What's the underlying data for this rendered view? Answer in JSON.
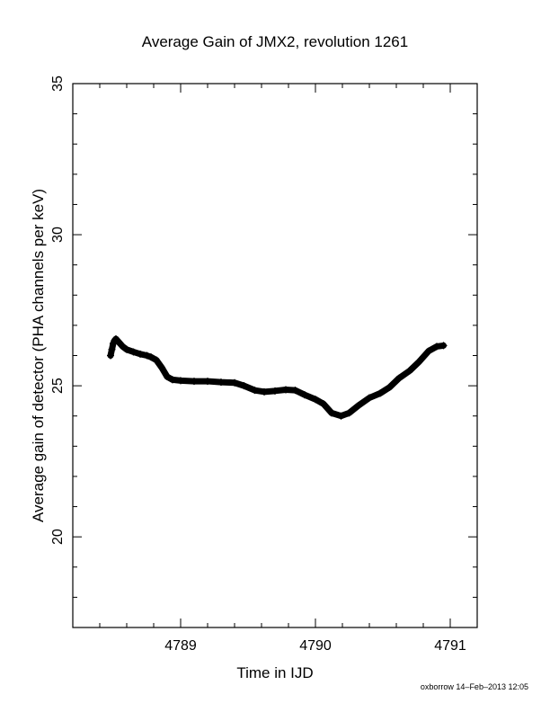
{
  "chart_data": {
    "type": "scatter",
    "title": "Average Gain of JMX2, revolution 1261",
    "xlabel": "Time in IJD",
    "ylabel": "Average gain of detector (PHA channels per keV)",
    "xlim": [
      4788.2,
      4791.2
    ],
    "ylim": [
      17,
      35
    ],
    "x_ticks": [
      4789,
      4790,
      4791
    ],
    "y_ticks": [
      20,
      25,
      30,
      35
    ],
    "x_minor_step": 0.2,
    "y_minor_step": 1,
    "marker": "+",
    "series": [
      {
        "points": [
          [
            4788.48,
            26.0
          ],
          [
            4788.49,
            26.2
          ],
          [
            4788.5,
            26.4
          ],
          [
            4788.51,
            26.5
          ],
          [
            4788.52,
            26.55
          ],
          [
            4788.54,
            26.45
          ],
          [
            4788.57,
            26.3
          ],
          [
            4788.6,
            26.2
          ],
          [
            4788.65,
            26.12
          ],
          [
            4788.7,
            26.05
          ],
          [
            4788.75,
            26.0
          ],
          [
            4788.78,
            25.95
          ],
          [
            4788.82,
            25.85
          ],
          [
            4788.86,
            25.6
          ],
          [
            4788.9,
            25.3
          ],
          [
            4788.94,
            25.2
          ],
          [
            4789.0,
            25.17
          ],
          [
            4789.1,
            25.15
          ],
          [
            4789.2,
            25.15
          ],
          [
            4789.3,
            25.12
          ],
          [
            4789.4,
            25.1
          ],
          [
            4789.47,
            25.0
          ],
          [
            4789.55,
            24.85
          ],
          [
            4789.62,
            24.8
          ],
          [
            4789.7,
            24.83
          ],
          [
            4789.78,
            24.87
          ],
          [
            4789.85,
            24.85
          ],
          [
            4789.92,
            24.7
          ],
          [
            4790.0,
            24.55
          ],
          [
            4790.06,
            24.4
          ],
          [
            4790.12,
            24.1
          ],
          [
            4790.19,
            24.0
          ],
          [
            4790.25,
            24.1
          ],
          [
            4790.32,
            24.35
          ],
          [
            4790.4,
            24.6
          ],
          [
            4790.48,
            24.75
          ],
          [
            4790.55,
            24.95
          ],
          [
            4790.62,
            25.25
          ],
          [
            4790.7,
            25.5
          ],
          [
            4790.77,
            25.8
          ],
          [
            4790.84,
            26.15
          ],
          [
            4790.9,
            26.3
          ],
          [
            4790.95,
            26.33
          ]
        ]
      }
    ],
    "grid": false
  },
  "footer": "oxborrow 14–Feb–2013 12:05",
  "colors": {
    "background": "#ffffff",
    "ink": "#000000"
  }
}
